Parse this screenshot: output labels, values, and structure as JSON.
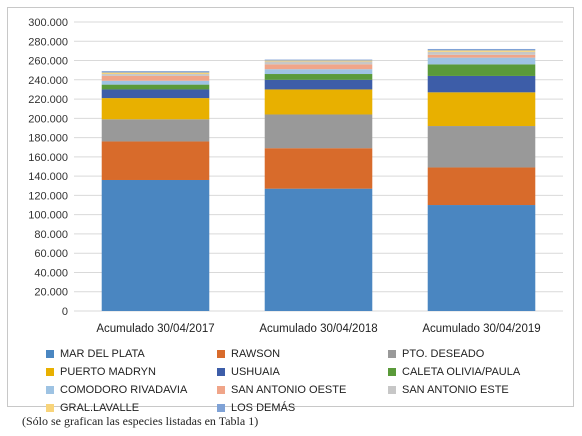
{
  "chart_data": {
    "type": "bar",
    "stacked": true,
    "categories": [
      "Acumulado 30/04/2017",
      "Acumulado 30/04/2018",
      "Acumulado 30/04/2019"
    ],
    "ylim": [
      0,
      300000
    ],
    "yticks": [
      "0",
      "20.000",
      "40.000",
      "60.000",
      "80.000",
      "100.000",
      "120.000",
      "140.000",
      "160.000",
      "180.000",
      "200.000",
      "220.000",
      "240.000",
      "260.000",
      "280.000",
      "300.000"
    ],
    "grid": true,
    "legend_position": "bottom",
    "series": [
      {
        "name": "MAR DEL PLATA",
        "color": "#4a86c1",
        "values": [
          136000,
          127000,
          110000
        ]
      },
      {
        "name": "RAWSON",
        "color": "#d86b2b",
        "values": [
          40000,
          42000,
          39000
        ]
      },
      {
        "name": "PTO. DESEADO",
        "color": "#999999",
        "values": [
          23000,
          35000,
          43000
        ]
      },
      {
        "name": "PUERTO MADRYN",
        "color": "#e8b000",
        "values": [
          22000,
          26000,
          35000
        ]
      },
      {
        "name": "USHUAIA",
        "color": "#3d5da8",
        "values": [
          9000,
          10000,
          17000
        ]
      },
      {
        "name": "CALETA OLIVIA/PAULA",
        "color": "#5a9a3a",
        "values": [
          5000,
          6000,
          12000
        ]
      },
      {
        "name": "COMODORO RIVADAVIA",
        "color": "#9ec3e3",
        "values": [
          4000,
          5000,
          7000
        ]
      },
      {
        "name": "SAN ANTONIO OESTE",
        "color": "#f0a589",
        "values": [
          5000,
          5000,
          3000
        ]
      },
      {
        "name": "SAN ANTONIO ESTE",
        "color": "#c7c7c7",
        "values": [
          2000,
          3000,
          3000
        ]
      },
      {
        "name": "GRAL.LAVALLE",
        "color": "#f8d47a",
        "values": [
          1500,
          1000,
          1500
        ]
      },
      {
        "name": "LOS DEMÁS",
        "color": "#7fa2d6",
        "values": [
          1500,
          1000,
          1500
        ]
      }
    ]
  },
  "footnote": "(Sólo se grafican las especies listadas en Tabla 1)"
}
